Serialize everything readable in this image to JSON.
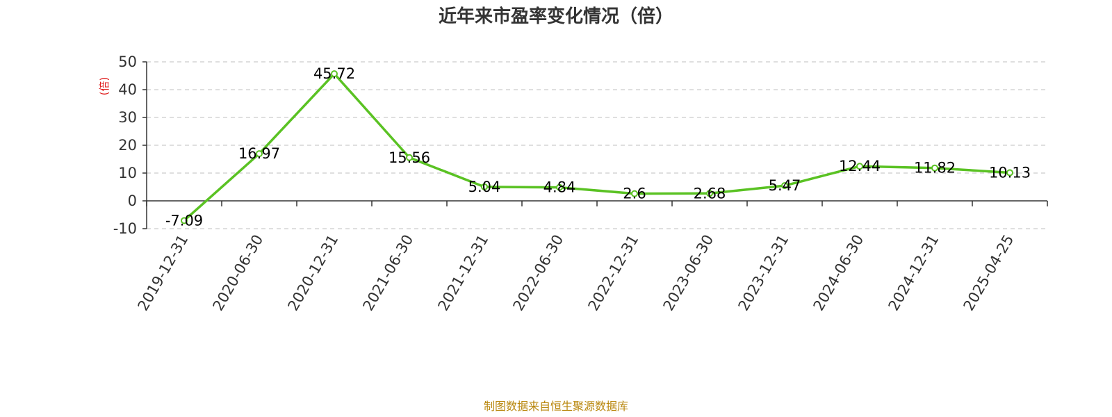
{
  "colors": {
    "line": "#5ac223",
    "ylabel": "#e02020",
    "footer": "#b8860b",
    "grid": "#cccccc",
    "axis": "#333333"
  },
  "footer": "制图数据来自恒生聚源数据库",
  "chart_data": {
    "type": "line",
    "title": "近年来市盈率变化情况（倍）",
    "xlabel": "",
    "ylabel": "(倍)",
    "categories": [
      "2019-12-31",
      "2020-06-30",
      "2020-12-31",
      "2021-06-30",
      "2021-12-31",
      "2022-06-30",
      "2022-12-31",
      "2023-06-30",
      "2023-12-31",
      "2024-06-30",
      "2024-12-31",
      "2025-04-25"
    ],
    "values": [
      -7.09,
      16.97,
      45.72,
      15.56,
      5.04,
      4.84,
      2.6,
      2.68,
      5.47,
      12.44,
      11.82,
      10.13
    ],
    "value_labels": [
      "-7.09",
      "16.97",
      "45.72",
      "15.56",
      "5.04",
      "4.84",
      "2.6",
      "2.68",
      "5.47",
      "12.44",
      "11.82",
      "10.13"
    ],
    "yticks": [
      "-10",
      "0",
      "10",
      "20",
      "30",
      "40",
      "50"
    ],
    "ylim": [
      -10,
      50
    ],
    "grid": true,
    "legend": "none"
  }
}
